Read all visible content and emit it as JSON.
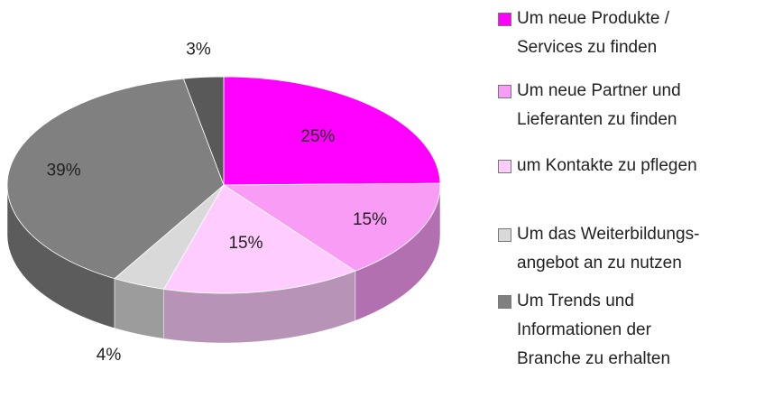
{
  "chart_data": {
    "type": "pie3d",
    "categories": [
      "Um neue Produkte / Services zu finden",
      "Um neue Partner und Lieferanten zu finden",
      "um Kontakte zu pflegen",
      "Um das Weiterbildungs-angebot an zu nutzen",
      "Um Trends und Informationen der Branche zu erhalten",
      null
    ],
    "values": [
      25,
      15,
      15,
      4,
      39,
      3
    ],
    "value_labels": [
      "25%",
      "15%",
      "15%",
      "4%",
      "39%",
      "3%"
    ],
    "colors": [
      "#ff00ff",
      "#f99cf5",
      "#ffccff",
      "#d9d9d9",
      "#808080",
      "#595959"
    ],
    "legend": "right"
  }
}
